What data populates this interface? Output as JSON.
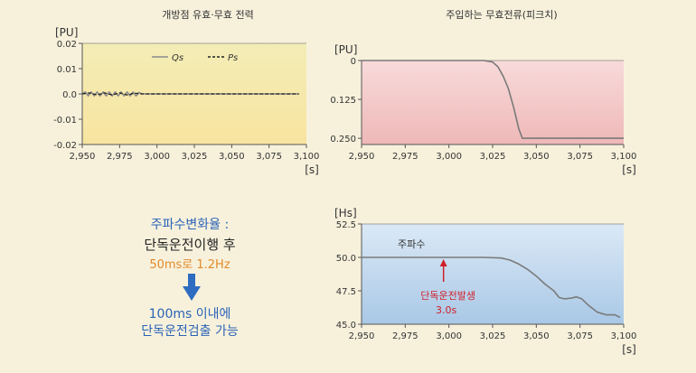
{
  "chart_data": [
    {
      "type": "line",
      "title": "개방점 유효·무효 전력",
      "ylabel": "[PU]",
      "xlabel": "[s]",
      "xlim": [
        2950,
        3100
      ],
      "ylim": [
        -0.02,
        0.02
      ],
      "x_ticks": [
        "2,950",
        "2,975",
        "3,000",
        "3,025",
        "3,050",
        "3,075",
        "3,100"
      ],
      "y_ticks": [
        "0.02",
        "0.01",
        "0.0",
        "-0.01",
        "-0.02"
      ],
      "legend_position": "top",
      "background": [
        "#f3edb6",
        "#f8e4a0"
      ],
      "series": [
        {
          "name": "Qs",
          "color": "#8a8a8a",
          "x": [
            2950,
            2952,
            2954,
            2956,
            2958,
            2960,
            2962,
            2964,
            2966,
            2968,
            2970,
            2972,
            2974,
            2976,
            2978,
            2980,
            2982,
            2984,
            2986,
            2988,
            2990,
            3000,
            3050,
            3095
          ],
          "y": [
            0.0,
            0.0008,
            -0.0008,
            0.0008,
            -0.0008,
            0.0008,
            -0.0008,
            0.0008,
            -0.0008,
            0.0008,
            -0.0008,
            0.0008,
            -0.0008,
            0.0008,
            -0.0008,
            0.0008,
            -0.0008,
            0.0008,
            -0.0008,
            0.0006,
            0.0,
            0.0,
            0.0,
            0.0
          ]
        },
        {
          "name": "Ps",
          "color": "#222222",
          "dash": true,
          "x": [
            2950,
            2955,
            2960,
            2965,
            2970,
            2975,
            2980,
            2985,
            2990,
            3000,
            3050,
            3095
          ],
          "y": [
            0.0,
            0.0004,
            -0.0004,
            0.0004,
            -0.0004,
            0.0004,
            -0.0004,
            0.0003,
            0.0,
            0.0,
            0.0,
            0.0
          ]
        }
      ]
    },
    {
      "type": "line",
      "title": "주입하는 무효전류(피크치)",
      "ylabel": "[PU]",
      "xlabel": "[s]",
      "xlim": [
        2950,
        3100
      ],
      "ylim": [
        0,
        0.27
      ],
      "y_inverted": true,
      "x_ticks": [
        "2,950",
        "2,975",
        "3,000",
        "3,025",
        "3,050",
        "3,075",
        "3,100"
      ],
      "y_ticks": [
        "0",
        "0.125",
        "0.250"
      ],
      "background": [
        "#f8dada",
        "#efb8b8"
      ],
      "series": [
        {
          "name": "",
          "color": "#7a7a7a",
          "x": [
            2950,
            3020,
            3025,
            3028,
            3031,
            3034,
            3037,
            3040,
            3042,
            3050,
            3100
          ],
          "y": [
            0.0,
            0.0,
            0.005,
            0.02,
            0.05,
            0.09,
            0.15,
            0.22,
            0.25,
            0.25,
            0.25
          ]
        }
      ]
    },
    {
      "type": "line",
      "title": "",
      "ylabel": "[Hs]",
      "xlabel": "[s]",
      "xlim": [
        2950,
        3100
      ],
      "ylim": [
        45.0,
        52.5
      ],
      "x_ticks": [
        "2,950",
        "2,975",
        "3,000",
        "3,025",
        "3,050",
        "3,075",
        "3,100"
      ],
      "y_ticks": [
        "52.5",
        "50.0",
        "47.5",
        "45.0"
      ],
      "background": [
        "#dbe9f6",
        "#a9c8e6"
      ],
      "series_label": "주파수",
      "annotation": {
        "text1": "단독운전발생",
        "text2": "3.0s",
        "x": 3000,
        "color": "#d0202a"
      },
      "series": [
        {
          "name": "주파수",
          "color": "#7a7a7a",
          "x": [
            2950,
            3000,
            3020,
            3030,
            3035,
            3040,
            3045,
            3050,
            3055,
            3060,
            3063,
            3066,
            3070,
            3073,
            3076,
            3080,
            3085,
            3090,
            3095,
            3098
          ],
          "y": [
            50.0,
            50.0,
            50.0,
            49.95,
            49.8,
            49.5,
            49.1,
            48.6,
            48.0,
            47.5,
            47.0,
            46.9,
            46.95,
            47.05,
            46.9,
            46.4,
            45.9,
            45.7,
            45.7,
            45.5
          ]
        }
      ]
    }
  ],
  "middle_text": {
    "line1": "주파수변화율 :",
    "line2": "단독운전이행 후",
    "line3": "50ms로 1.2Hz",
    "line4": "100ms 이내에",
    "line5": "단독운전검출 가능"
  }
}
